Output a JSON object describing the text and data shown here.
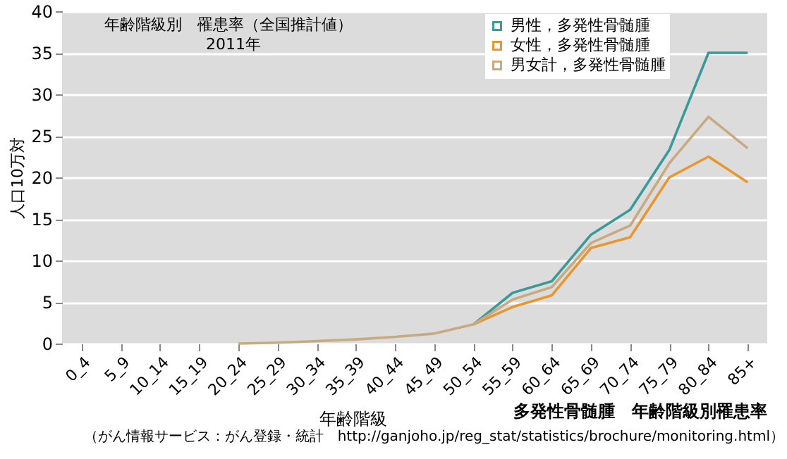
{
  "chart_data": {
    "type": "line",
    "title": "年齢階級別　罹患率（全国推計値）",
    "subtitle": "2011年",
    "xlabel": "年齢階級",
    "ylabel": "人口10万対",
    "annotations": [
      "多発性骨髄腫　年齢階級別罹患率",
      "（がん情報サービス：がん登録・統計　http://ganjoho.jp/reg_stat/statistics/brochure/monitoring.html）"
    ],
    "categories": [
      "0_4",
      "5_9",
      "10_14",
      "15_19",
      "20_24",
      "25_29",
      "30_34",
      "35_39",
      "40_44",
      "45_49",
      "50_54",
      "55_59",
      "60_64",
      "65_69",
      "70_74",
      "75_79",
      "80_84",
      "85+"
    ],
    "series": [
      {
        "name": "男性，多発性骨髄腫",
        "color": "#3a9a9a",
        "values": [
          null,
          null,
          null,
          null,
          null,
          null,
          null,
          null,
          null,
          null,
          2.3,
          6.1,
          7.5,
          13.1,
          16.1,
          23.3,
          35,
          35
        ]
      },
      {
        "name": "女性，多発性骨髄腫",
        "color": "#e8962e",
        "values": [
          null,
          null,
          null,
          null,
          null,
          null,
          null,
          null,
          null,
          null,
          2.3,
          4.4,
          5.8,
          11.5,
          12.8,
          20,
          22.5,
          19.4
        ]
      },
      {
        "name": "男女計，多発性骨髄腫",
        "color": "#c8aa80",
        "values": [
          null,
          null,
          null,
          null,
          0,
          0.1,
          0.3,
          0.5,
          0.8,
          1.2,
          2.3,
          5.3,
          6.8,
          12.1,
          14.2,
          21.7,
          27.3,
          23.5
        ]
      }
    ],
    "ylim": [
      0,
      40
    ],
    "yticks": [
      0,
      5,
      10,
      15,
      20,
      25,
      30,
      35,
      40
    ],
    "grid": "y",
    "legend": "top right",
    "marker": "none",
    "line_style": "solid"
  }
}
